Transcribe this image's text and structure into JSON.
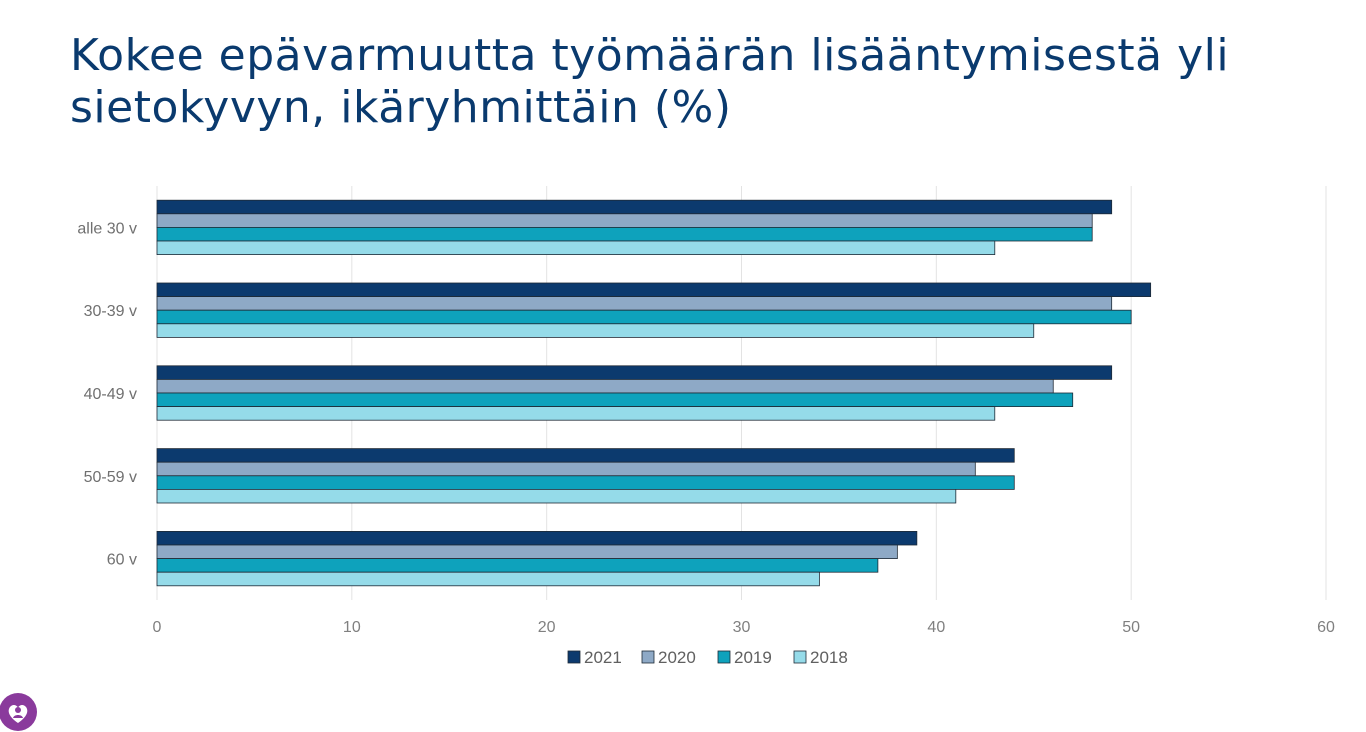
{
  "title": "Kokee epävarmuutta työmäärän lisääntymisestä yli sietokyvyn, ikäryhmittäin (%)",
  "colors": {
    "title": "#0a3a6e",
    "series": [
      "#0c3a6e",
      "#8ea9c6",
      "#0ea2bc",
      "#95dbe9"
    ],
    "grid": "#e3e3e3",
    "bar_outline": "#1f2a36",
    "logo": "#8a3a9c"
  },
  "logo": {
    "icon": "heart-person-icon"
  },
  "chart_data": {
    "type": "bar",
    "orientation": "horizontal",
    "title": "",
    "xlabel": "",
    "ylabel": "",
    "categories": [
      "alle 30 v",
      "30-39 v",
      "40-49 v",
      "50-59 v",
      "60 v"
    ],
    "series": [
      {
        "name": "2021",
        "values": [
          49,
          51,
          49,
          44,
          39
        ]
      },
      {
        "name": "2020",
        "values": [
          48,
          49,
          46,
          42,
          38
        ]
      },
      {
        "name": "2019",
        "values": [
          48,
          50,
          47,
          44,
          37
        ]
      },
      {
        "name": "2018",
        "values": [
          43,
          45,
          43,
          41,
          34
        ]
      }
    ],
    "xlim": [
      0,
      60
    ],
    "xticks": [
      0,
      10,
      20,
      30,
      40,
      50,
      60
    ],
    "grid": true,
    "legend": "bottom"
  }
}
